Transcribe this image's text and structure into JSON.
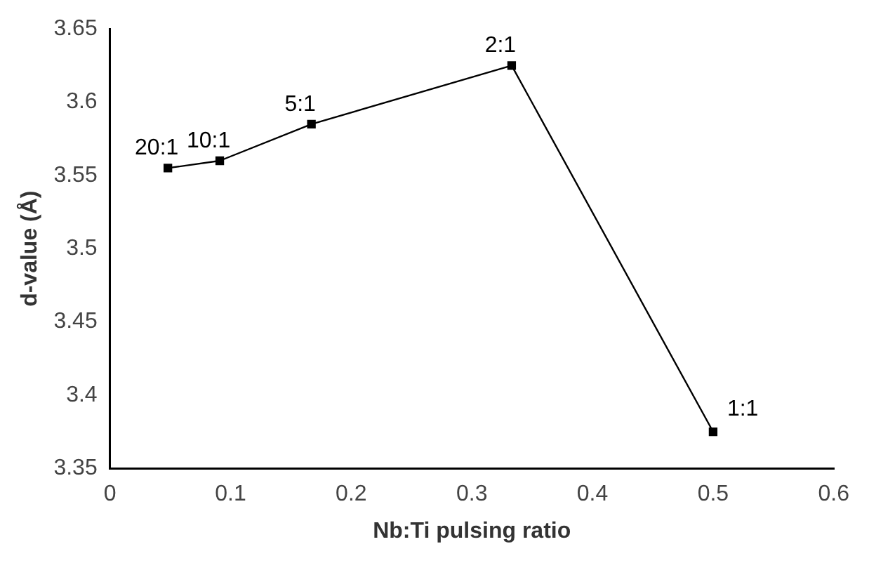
{
  "chart_data": {
    "type": "line",
    "xlabel": "Nb:Ti pulsing ratio",
    "ylabel": "d-value (Å)",
    "x": [
      0.048,
      0.091,
      0.167,
      0.333,
      0.5
    ],
    "series": [
      {
        "color": "#000000",
        "values": [
          3.555,
          3.56,
          3.585,
          3.625,
          3.375
        ]
      }
    ],
    "xlim": [
      0,
      0.6
    ],
    "xticks": [
      0,
      0.1,
      0.2,
      0.3,
      0.4,
      0.5,
      0.6
    ],
    "ylim": [
      3.35,
      3.65
    ],
    "yticks": [
      3.35,
      3.4,
      3.45,
      3.5,
      3.55,
      3.6,
      3.65
    ],
    "grid": false,
    "legend": false,
    "marker": "square",
    "line_style": "solid",
    "annotations": [
      {
        "text": "20:1",
        "x": 0.048,
        "y": 3.555
      },
      {
        "text": "10:1",
        "x": 0.091,
        "y": 3.56
      },
      {
        "text": "5:1",
        "x": 0.167,
        "y": 3.585
      },
      {
        "text": "2:1",
        "x": 0.333,
        "y": 3.625
      },
      {
        "text": "1:1",
        "x": 0.5,
        "y": 3.375
      }
    ]
  }
}
